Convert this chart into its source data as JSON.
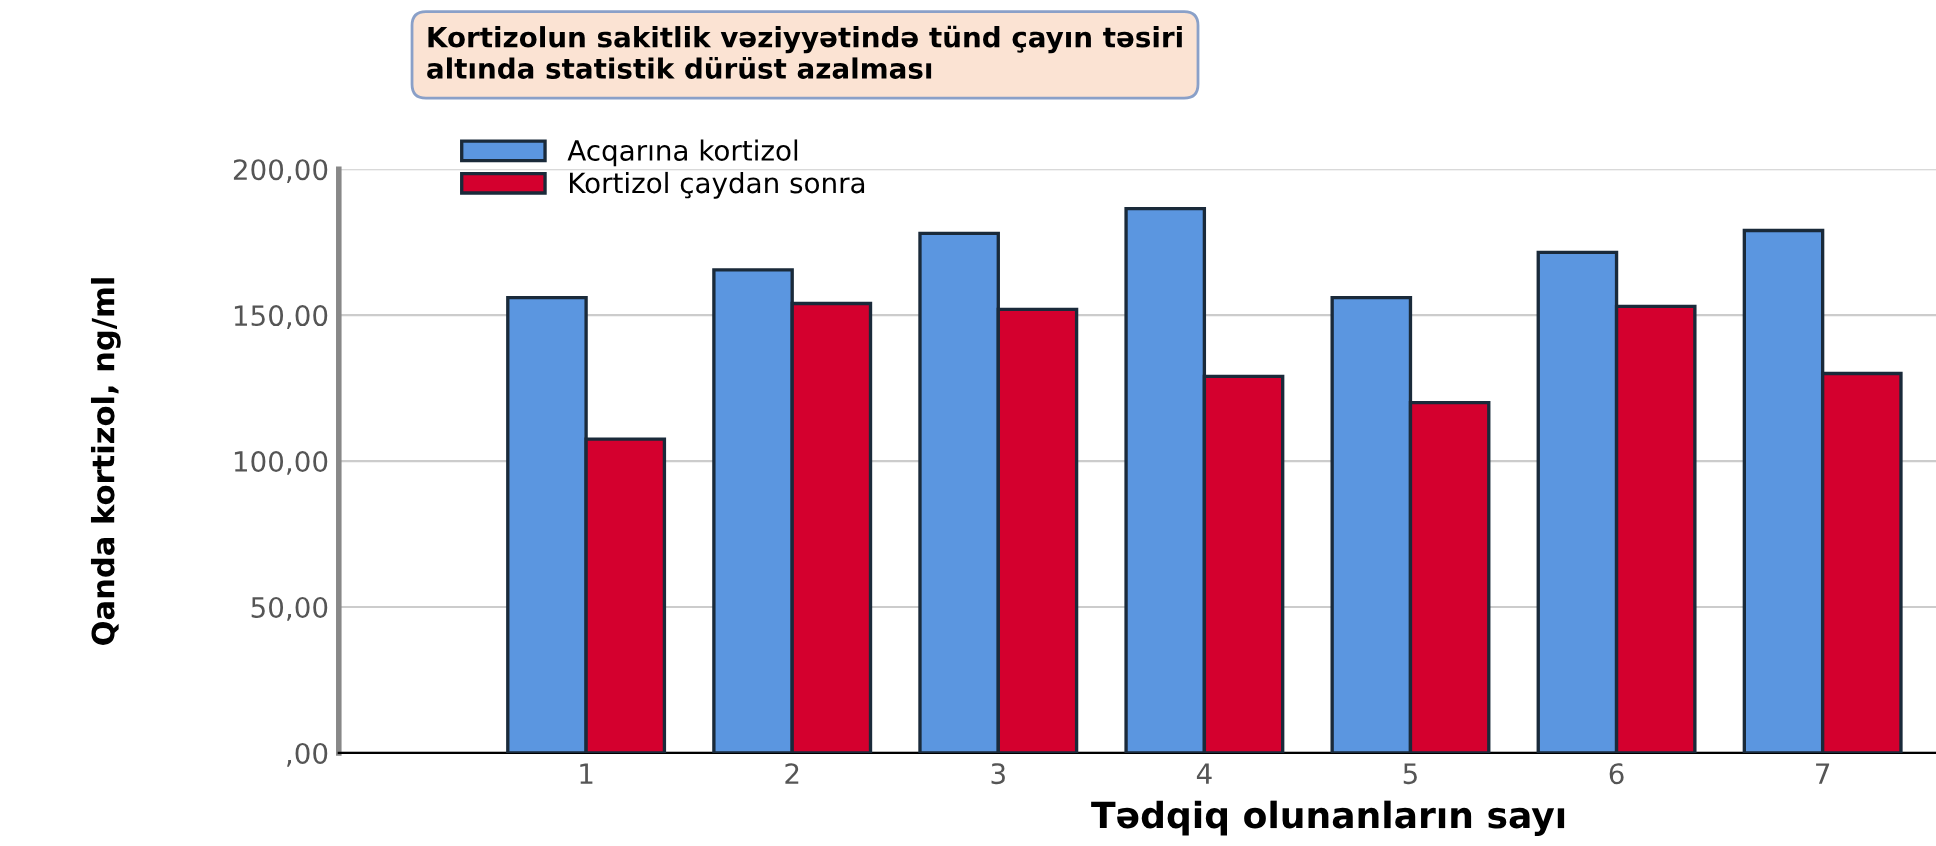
{
  "chart_data": {
    "type": "bar",
    "title": "Kortizolun sakitlik vəziyyətində tünd çayın təsiri\naltında statistik dürüst azalması",
    "xlabel": "Tədqiq olunanların sayı",
    "ylabel": "Qanda kortizol, ng/ml",
    "categories": [
      "1",
      "2",
      "3",
      "4",
      "5",
      "6",
      "7"
    ],
    "series": [
      {
        "name": "Acqarına kortizol",
        "color": "#5b96e0",
        "values": [
          156,
          165.5,
          178,
          186.5,
          156,
          171.5,
          179
        ]
      },
      {
        "name": "Kortizol çaydan sonra",
        "color": "#d4002e",
        "values": [
          107.5,
          154,
          152,
          129,
          120,
          153,
          130
        ]
      }
    ],
    "ylim": [
      0,
      200
    ],
    "yticks": [
      {
        "value": 0,
        "label": ",00"
      },
      {
        "value": 50,
        "label": "50,00"
      },
      {
        "value": 100,
        "label": "100,00"
      },
      {
        "value": 150,
        "label": "150,00"
      },
      {
        "value": 200,
        "label": "200,00"
      }
    ],
    "grid": "y",
    "legend": "top left"
  }
}
